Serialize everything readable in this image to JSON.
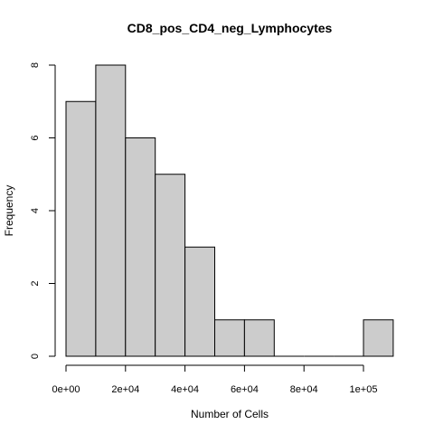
{
  "chart_data": {
    "type": "bar",
    "title": "CD8_pos_CD4_neg_Lymphocytes",
    "xlabel": "Number of Cells",
    "ylabel": "Frequency",
    "bins": [
      {
        "from": 0,
        "to": 10000,
        "count": 7
      },
      {
        "from": 10000,
        "to": 20000,
        "count": 8
      },
      {
        "from": 20000,
        "to": 30000,
        "count": 6
      },
      {
        "from": 30000,
        "to": 40000,
        "count": 5
      },
      {
        "from": 40000,
        "to": 50000,
        "count": 3
      },
      {
        "from": 50000,
        "to": 60000,
        "count": 1
      },
      {
        "from": 60000,
        "to": 70000,
        "count": 1
      },
      {
        "from": 70000,
        "to": 80000,
        "count": 0
      },
      {
        "from": 80000,
        "to": 90000,
        "count": 0
      },
      {
        "from": 90000,
        "to": 100000,
        "count": 0
      },
      {
        "from": 100000,
        "to": 110000,
        "count": 1
      }
    ],
    "xlim": [
      0,
      110000
    ],
    "ylim": [
      0,
      8
    ],
    "x_ticks": [
      {
        "value": 0,
        "label": "0e+00"
      },
      {
        "value": 20000,
        "label": "2e+04"
      },
      {
        "value": 40000,
        "label": "4e+04"
      },
      {
        "value": 60000,
        "label": "6e+04"
      },
      {
        "value": 80000,
        "label": "8e+04"
      },
      {
        "value": 100000,
        "label": "1e+05"
      }
    ],
    "y_ticks": [
      {
        "value": 0,
        "label": "0"
      },
      {
        "value": 2,
        "label": "2"
      },
      {
        "value": 4,
        "label": "4"
      },
      {
        "value": 6,
        "label": "6"
      },
      {
        "value": 8,
        "label": "8"
      }
    ],
    "grid": false,
    "legend": "none",
    "bar_color": "#cccccc",
    "edge_color": "#000000"
  }
}
